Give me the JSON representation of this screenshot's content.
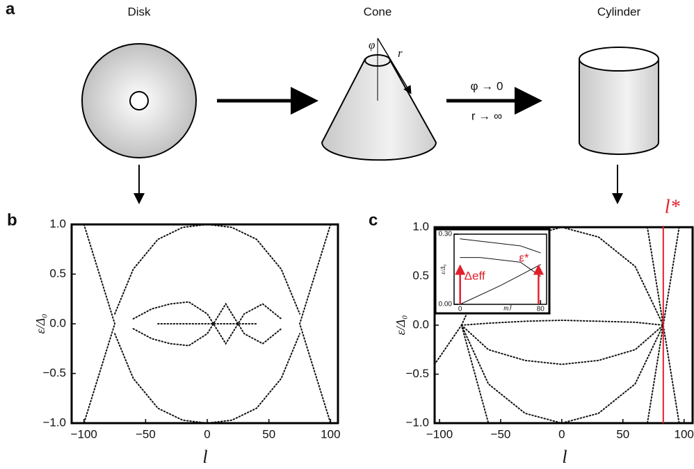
{
  "figure": {
    "panel_a": "a",
    "disk": "Disk",
    "cone": "Cone",
    "cylinder": "Cylinder",
    "phi": "φ",
    "r": "r",
    "limit_phi": "φ → 0",
    "limit_r": "r → ∞"
  },
  "chart_data": [
    {
      "type": "line",
      "panel": "b",
      "xlabel": "l",
      "ylabel": "ε/Δ₀",
      "xlim": [
        -110,
        106
      ],
      "ylim": [
        -1,
        1
      ],
      "xticks": [
        {
          "value": -100,
          "label": "−100"
        },
        {
          "value": -50,
          "label": "−50"
        },
        0,
        50,
        100
      ],
      "yticks": [
        {
          "value": -1,
          "label": "−1.0"
        },
        {
          "value": -0.5,
          "label": "−0.5"
        },
        {
          "value": 0,
          "label": "0.0"
        },
        0.5,
        {
          "value": 1,
          "label": "1.0"
        }
      ],
      "series": [
        {
          "color": "#111111",
          "x": [
            -75,
            -60,
            -40,
            -20,
            0,
            20,
            40,
            60,
            75
          ],
          "y": [
            0.1,
            0.55,
            0.85,
            0.97,
            1.0,
            0.97,
            0.85,
            0.55,
            0.1
          ]
        },
        {
          "color": "#111111",
          "x": [
            -75,
            -60,
            -40,
            -20,
            0,
            20,
            40,
            60,
            75
          ],
          "y": [
            -0.1,
            -0.55,
            -0.85,
            -0.97,
            -1.0,
            -0.97,
            -0.85,
            -0.55,
            -0.1
          ]
        },
        {
          "color": "#111111",
          "x": [
            -60,
            -45,
            -30,
            -15,
            0,
            15,
            30,
            45,
            60
          ],
          "y": [
            0.05,
            0.15,
            0.2,
            0.22,
            0.1,
            -0.2,
            0.1,
            0.2,
            0.05
          ]
        },
        {
          "color": "#111111",
          "x": [
            -60,
            -45,
            -30,
            -15,
            0,
            15,
            30,
            45,
            60
          ],
          "y": [
            -0.05,
            -0.15,
            -0.2,
            -0.22,
            -0.1,
            0.2,
            -0.1,
            -0.2,
            -0.05
          ]
        },
        {
          "color": "#111111",
          "x": [
            -100,
            -75,
            -100
          ],
          "y": [
            1.0,
            0.0,
            -1.0
          ]
        },
        {
          "color": "#111111",
          "x": [
            100,
            75,
            100
          ],
          "y": [
            1.0,
            0.0,
            -1.0
          ]
        },
        {
          "color": "#111111",
          "x": [
            -40,
            0,
            40
          ],
          "y": [
            0.0,
            0.0,
            0.0
          ]
        }
      ]
    },
    {
      "type": "line",
      "panel": "c",
      "xlabel": "l",
      "ylabel": "ε/Δ₀",
      "xlim": [
        -104,
        107
      ],
      "ylim": [
        -1,
        1
      ],
      "xticks": [
        {
          "value": -100,
          "label": "−100"
        },
        {
          "value": -50,
          "label": "−50"
        },
        0,
        50,
        100
      ],
      "yticks": [
        {
          "value": -1,
          "label": "−1.0"
        },
        {
          "value": -0.5,
          "label": "−0.5"
        },
        {
          "value": 0,
          "label": "0.0"
        },
        0.5,
        {
          "value": 1,
          "label": "1.0"
        }
      ],
      "marker_line": {
        "x": 83,
        "label": "l*",
        "color": "#e0202a"
      },
      "series": [
        {
          "color": "#111111",
          "x": [
            -82,
            -60,
            -30,
            0,
            30,
            60,
            83
          ],
          "y": [
            0,
            0.02,
            0.04,
            0.05,
            0.04,
            0.03,
            0
          ]
        },
        {
          "color": "#111111",
          "x": [
            -82,
            -60,
            -30,
            0,
            30,
            60,
            83
          ],
          "y": [
            0,
            -0.25,
            -0.36,
            -0.4,
            -0.36,
            -0.25,
            0
          ]
        },
        {
          "color": "#111111",
          "x": [
            -82,
            -60,
            -30,
            0,
            30,
            60,
            83
          ],
          "y": [
            0,
            -0.6,
            -0.9,
            -1.0,
            -0.9,
            -0.6,
            0
          ]
        },
        {
          "color": "#111111",
          "x": [
            -82,
            -60,
            -30,
            0,
            30,
            60,
            83
          ],
          "y": [
            0,
            0.6,
            0.9,
            1.0,
            0.9,
            0.6,
            0
          ]
        },
        {
          "color": "#111111",
          "x": [
            70,
            83,
            96
          ],
          "y": [
            1.0,
            0.0,
            -1.0
          ]
        },
        {
          "color": "#111111",
          "x": [
            96,
            83,
            70
          ],
          "y": [
            1.0,
            0.0,
            -1.0
          ]
        },
        {
          "color": "#111111",
          "x": [
            -104,
            -82,
            -60
          ],
          "y": [
            -0.4,
            0.0,
            -1.0
          ]
        }
      ]
    },
    {
      "type": "line",
      "panel": "inset",
      "xlabel": "mJ",
      "ylabel": "ε/Δ₀",
      "xlim": [
        -6,
        86
      ],
      "ylim": [
        0,
        0.3
      ],
      "xticks": [
        0,
        80
      ],
      "yticks": [
        {
          "value": 0,
          "label": "0.00"
        },
        {
          "value": 0.3,
          "label": "0.30"
        }
      ],
      "arrows": [
        {
          "x": 0,
          "label": "Δeff",
          "color": "#e0202a"
        },
        {
          "x": 78,
          "label": "ε*",
          "color": "#e0202a"
        }
      ],
      "series": [
        {
          "color": "#111111",
          "x": [
            0,
            40,
            80
          ],
          "y": [
            0.0,
            0.08,
            0.17
          ]
        },
        {
          "color": "#111111",
          "x": [
            0,
            20,
            40,
            60,
            80
          ],
          "y": [
            0.28,
            0.27,
            0.26,
            0.25,
            0.22
          ]
        },
        {
          "color": "#111111",
          "x": [
            0,
            20,
            40,
            60,
            80
          ],
          "y": [
            0.2,
            0.2,
            0.19,
            0.18,
            0.12
          ]
        }
      ]
    }
  ]
}
